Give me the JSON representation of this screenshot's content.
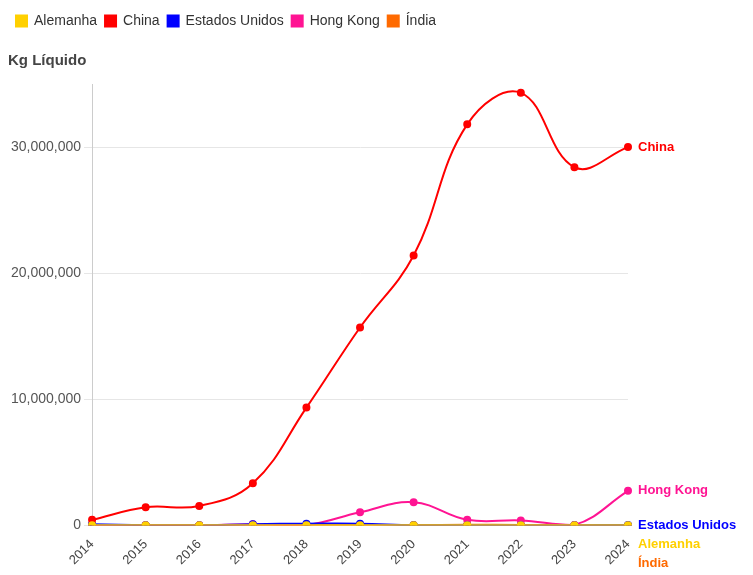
{
  "chart_data": {
    "type": "line",
    "y_label": "Kg Líquido",
    "categories": [
      "2014",
      "2015",
      "2016",
      "2017",
      "2018",
      "2019",
      "2020",
      "2021",
      "2022",
      "2023",
      "2024"
    ],
    "series": [
      {
        "name": "Alemanha",
        "color": "#ffd000",
        "values": [
          20000,
          15000,
          15000,
          20000,
          20000,
          25000,
          20000,
          20000,
          20000,
          15000,
          20000
        ]
      },
      {
        "name": "China",
        "color": "#ff0000",
        "values": [
          450000,
          1450000,
          1550000,
          3350000,
          9350000,
          15700000,
          21400000,
          31800000,
          34300000,
          28400000,
          30000000
        ]
      },
      {
        "name": "Estados Unidos",
        "color": "#0000ff",
        "values": [
          100000,
          30000,
          20000,
          100000,
          150000,
          150000,
          20000,
          30000,
          20000,
          30000,
          40000
        ]
      },
      {
        "name": "Hong Kong",
        "color": "#ff1493",
        "values": [
          50000,
          20000,
          20000,
          100000,
          50000,
          1050000,
          1850000,
          450000,
          400000,
          50000,
          2750000
        ]
      },
      {
        "name": "Índia",
        "color": "#ff6a00",
        "values": [
          50000,
          30000,
          20000,
          30000,
          40000,
          50000,
          40000,
          60000,
          50000,
          20000,
          10000
        ]
      }
    ],
    "ylim": [
      0,
      35000000
    ],
    "yticks": [
      0,
      {
        "value": 10000000,
        "label": "10,000,000"
      },
      {
        "value": 20000000,
        "label": "20,000,000"
      },
      {
        "value": 30000000,
        "label": "30,000,000"
      }
    ],
    "grid": true,
    "legend": "top",
    "marker": "circle"
  }
}
